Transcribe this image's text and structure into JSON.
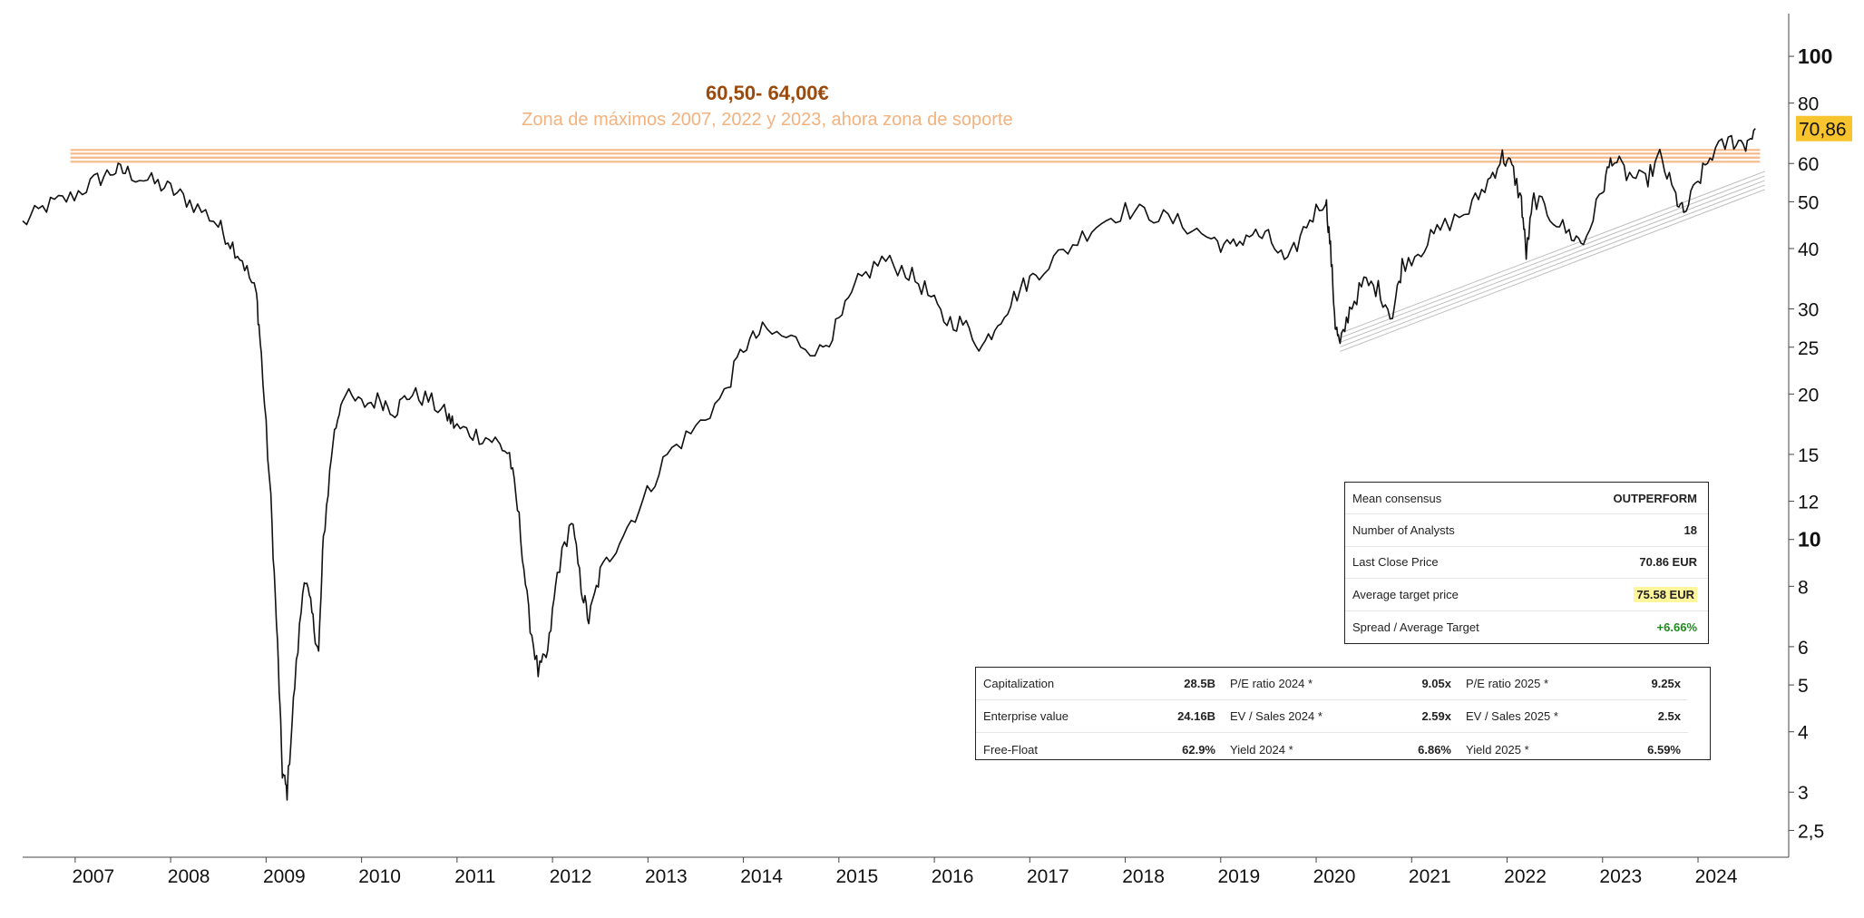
{
  "chart_data": {
    "type": "line",
    "y_scale": "log",
    "ylim": [
      2.2,
      110
    ],
    "xlim": [
      2006.45,
      2024.95
    ],
    "x_ticks": [
      2007,
      2008,
      2009,
      2010,
      2011,
      2012,
      2013,
      2014,
      2015,
      2016,
      2017,
      2018,
      2019,
      2020,
      2021,
      2022,
      2023,
      2024
    ],
    "y_ticks": [
      {
        "value": 100,
        "label": "100",
        "bold": true
      },
      {
        "value": 80,
        "label": "80",
        "bold": false
      },
      {
        "value": 60,
        "label": "60",
        "bold": false
      },
      {
        "value": 50,
        "label": "50",
        "bold": false
      },
      {
        "value": 40,
        "label": "40",
        "bold": false
      },
      {
        "value": 30,
        "label": "30",
        "bold": false
      },
      {
        "value": 25,
        "label": "25",
        "bold": false
      },
      {
        "value": 20,
        "label": "20",
        "bold": false
      },
      {
        "value": 15,
        "label": "15",
        "bold": false
      },
      {
        "value": 12,
        "label": "12",
        "bold": false
      },
      {
        "value": 10,
        "label": "10",
        "bold": true
      },
      {
        "value": 8,
        "label": "8",
        "bold": false
      },
      {
        "value": 6,
        "label": "6",
        "bold": false
      },
      {
        "value": 5,
        "label": "5",
        "bold": false
      },
      {
        "value": 4,
        "label": "4",
        "bold": false
      },
      {
        "value": 3,
        "label": "3",
        "bold": false
      },
      {
        "value": 2.5,
        "label": "2,5",
        "bold": false
      }
    ],
    "price_series": {
      "color": "#111111",
      "points": [
        [
          2006.45,
          45.0
        ],
        [
          2006.7,
          49.0
        ],
        [
          2006.95,
          51.0
        ],
        [
          2007.2,
          55.0
        ],
        [
          2007.4,
          58.0
        ],
        [
          2007.55,
          57.5
        ],
        [
          2007.8,
          55.0
        ],
        [
          2008.0,
          53.0
        ],
        [
          2008.2,
          50.0
        ],
        [
          2008.45,
          46.0
        ],
        [
          2008.6,
          42.0
        ],
        [
          2008.75,
          38.0
        ],
        [
          2008.9,
          32.0
        ],
        [
          2008.95,
          24.0
        ],
        [
          2009.05,
          12.0
        ],
        [
          2009.12,
          6.0
        ],
        [
          2009.17,
          3.3
        ],
        [
          2009.22,
          3.0
        ],
        [
          2009.3,
          5.0
        ],
        [
          2009.4,
          8.5
        ],
        [
          2009.48,
          7.0
        ],
        [
          2009.55,
          5.8
        ],
        [
          2009.6,
          10.0
        ],
        [
          2009.7,
          16.0
        ],
        [
          2009.8,
          20.0
        ],
        [
          2010.0,
          19.0
        ],
        [
          2010.2,
          19.5
        ],
        [
          2010.35,
          18.5
        ],
        [
          2010.5,
          20.0
        ],
        [
          2010.7,
          19.5
        ],
        [
          2010.9,
          18.0
        ],
        [
          2011.0,
          17.0
        ],
        [
          2011.2,
          16.5
        ],
        [
          2011.4,
          16.0
        ],
        [
          2011.55,
          15.0
        ],
        [
          2011.65,
          11.0
        ],
        [
          2011.75,
          7.0
        ],
        [
          2011.85,
          5.3
        ],
        [
          2011.95,
          5.8
        ],
        [
          2012.05,
          8.5
        ],
        [
          2012.2,
          11.0
        ],
        [
          2012.3,
          8.0
        ],
        [
          2012.38,
          6.8
        ],
        [
          2012.5,
          8.5
        ],
        [
          2012.7,
          10.0
        ],
        [
          2012.95,
          12.0
        ],
        [
          2013.2,
          15.0
        ],
        [
          2013.5,
          17.0
        ],
        [
          2013.8,
          20.0
        ],
        [
          2014.0,
          25.0
        ],
        [
          2014.2,
          27.0
        ],
        [
          2014.5,
          26.0
        ],
        [
          2014.8,
          24.5
        ],
        [
          2015.0,
          28.0
        ],
        [
          2015.2,
          34.0
        ],
        [
          2015.45,
          38.0
        ],
        [
          2015.7,
          36.0
        ],
        [
          2015.9,
          33.0
        ],
        [
          2016.1,
          28.5
        ],
        [
          2016.3,
          28.0
        ],
        [
          2016.5,
          25.0
        ],
        [
          2016.7,
          29.0
        ],
        [
          2016.9,
          33.0
        ],
        [
          2017.1,
          36.0
        ],
        [
          2017.4,
          40.0
        ],
        [
          2017.7,
          45.0
        ],
        [
          2018.0,
          48.0
        ],
        [
          2018.3,
          47.0
        ],
        [
          2018.6,
          45.0
        ],
        [
          2018.9,
          42.0
        ],
        [
          2019.1,
          40.0
        ],
        [
          2019.3,
          43.0
        ],
        [
          2019.5,
          42.0
        ],
        [
          2019.7,
          37.0
        ],
        [
          2019.9,
          45.0
        ],
        [
          2020.1,
          51.0
        ],
        [
          2020.15,
          40.0
        ],
        [
          2020.2,
          28.0
        ],
        [
          2020.25,
          25.0
        ],
        [
          2020.35,
          30.0
        ],
        [
          2020.5,
          34.0
        ],
        [
          2020.65,
          33.0
        ],
        [
          2020.8,
          29.0
        ],
        [
          2020.9,
          37.0
        ],
        [
          2021.1,
          40.0
        ],
        [
          2021.3,
          44.0
        ],
        [
          2021.6,
          48.0
        ],
        [
          2021.8,
          55.0
        ],
        [
          2021.95,
          62.0
        ],
        [
          2022.05,
          59.0
        ],
        [
          2022.15,
          50.0
        ],
        [
          2022.2,
          39.0
        ],
        [
          2022.28,
          51.0
        ],
        [
          2022.45,
          47.0
        ],
        [
          2022.65,
          43.0
        ],
        [
          2022.8,
          41.0
        ],
        [
          2023.0,
          53.0
        ],
        [
          2023.1,
          62.0
        ],
        [
          2023.25,
          57.0
        ],
        [
          2023.45,
          55.0
        ],
        [
          2023.6,
          62.0
        ],
        [
          2023.75,
          52.0
        ],
        [
          2023.85,
          47.0
        ],
        [
          2024.0,
          55.0
        ],
        [
          2024.15,
          63.0
        ],
        [
          2024.35,
          67.0
        ],
        [
          2024.5,
          66.0
        ],
        [
          2024.6,
          70.86
        ]
      ]
    },
    "support_zone": {
      "low": 60.5,
      "high": 64.0,
      "x_start": 2006.95,
      "x_end": 2024.65,
      "color": "#f5b887",
      "line_values": [
        60.5,
        61.7,
        62.9,
        64.0
      ]
    },
    "trend_channel": {
      "color": "#bdbdbd",
      "start": [
        2020.25,
        24.5
      ],
      "end": [
        2024.7,
        53.0
      ],
      "offsets": [
        0,
        1,
        2,
        3,
        4
      ]
    },
    "last_price": {
      "value": 70.86,
      "label": "70,86",
      "color": "#f7c42e"
    },
    "annotation": {
      "title": "60,50- 64,00€",
      "subtitle": "Zona de máximos 2007, 2022 y 2023, ahora zona de soporte",
      "anchor_x": 2014.25,
      "color_title": "#9a4a0c",
      "color_subtitle": "#f3b27e"
    }
  },
  "consensus": {
    "rows": [
      {
        "label": "Mean consensus",
        "value": "OUTPERFORM",
        "style": "plain"
      },
      {
        "label": "Number of Analysts",
        "value": "18",
        "style": "plain"
      },
      {
        "label": "Last Close Price",
        "value": "70.86 EUR",
        "style": "plain"
      },
      {
        "label": "Average target price",
        "value": "75.58 EUR",
        "style": "highlight"
      },
      {
        "label": "Spread / Average Target",
        "value": "+6.66%",
        "style": "positive"
      }
    ]
  },
  "metrics": {
    "rows": [
      [
        "Capitalization",
        "28.5B",
        "P/E ratio 2024 *",
        "9.05x",
        "P/E ratio 2025 *",
        "9.25x"
      ],
      [
        "Enterprise value",
        "24.16B",
        "EV / Sales 2024 *",
        "2.59x",
        "EV / Sales 2025 *",
        "2.5x"
      ],
      [
        "Free-Float",
        "62.9%",
        "Yield 2024 *",
        "6.86%",
        "Yield 2025 *",
        "6.59%"
      ]
    ]
  }
}
